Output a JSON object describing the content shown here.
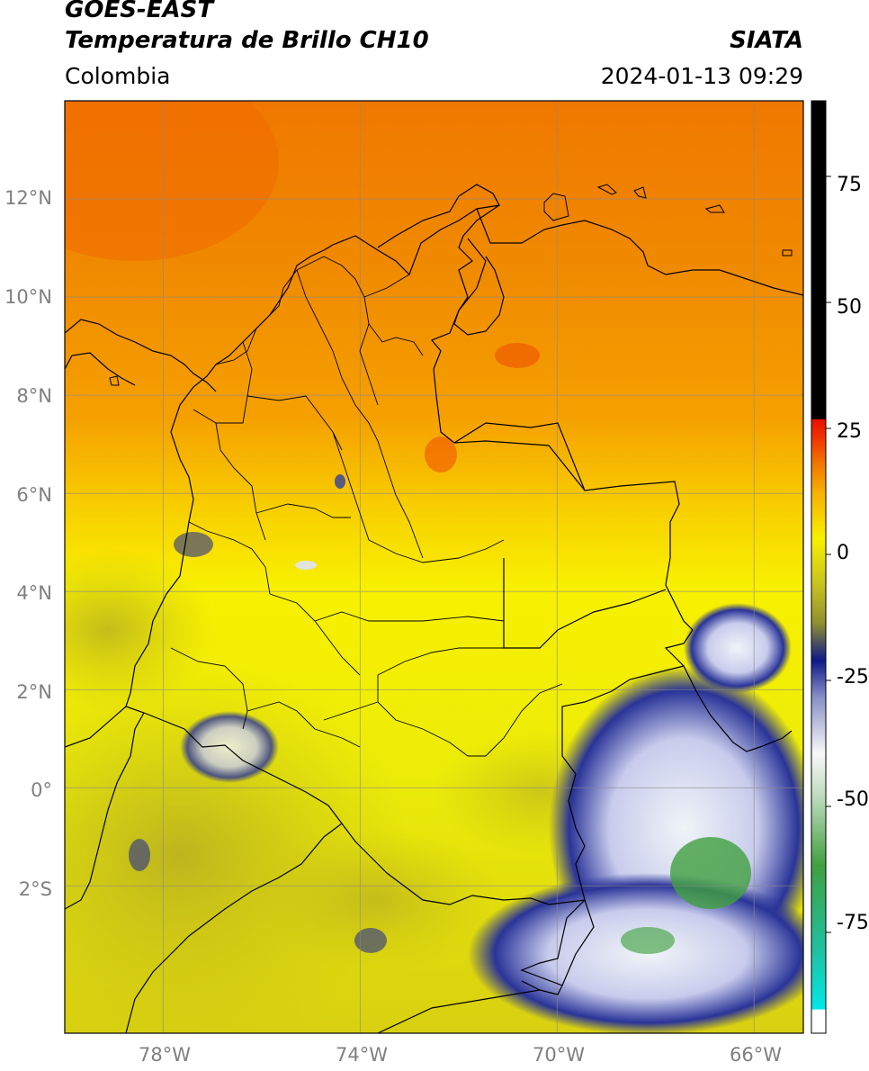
{
  "header": {
    "satellite": "GOES-EAST",
    "product": "Temperatura de Brillo CH10",
    "region": "Colombia",
    "agency": "SIATA",
    "datetime": "2024-01-13 09:29"
  },
  "map": {
    "lat_labels": [
      "12°N",
      "10°N",
      "8°N",
      "6°N",
      "4°N",
      "2°N",
      "0°",
      "2°S"
    ],
    "lon_labels": [
      "78°W",
      "74°W",
      "70°W",
      "66°W"
    ],
    "extent": {
      "lon_min": -80.0,
      "lon_max": -65.0,
      "lat_min": -5.0,
      "lat_max": 14.0
    },
    "gridlines": true
  },
  "colorbar": {
    "ticks": [
      "75",
      "50",
      "25",
      "0",
      "-25",
      "-50",
      "-75"
    ],
    "range": [
      -95,
      90
    ],
    "colors": {
      "warm_black": "#000000",
      "red": "#f02000",
      "orange": "#f08000",
      "yellow": "#f8f000",
      "olive": "#b8b020",
      "navy": "#101888",
      "white": "#f8f8f8",
      "green": "#40a040",
      "teal": "#20c0a0",
      "cyan": "#00e0e0"
    }
  }
}
